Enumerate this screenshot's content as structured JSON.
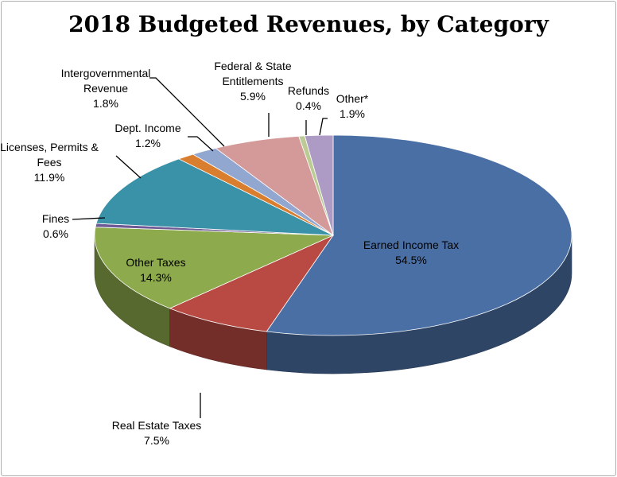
{
  "chart_data": {
    "type": "pie",
    "title": "2018 Budgeted Revenues, by Category",
    "slices": [
      {
        "label": [
          "Earned Income Tax"
        ],
        "value_text": "54.5%",
        "value": 54.5,
        "color": "#4A6FA5"
      },
      {
        "label": [
          "Real Estate Taxes"
        ],
        "value_text": "7.5%",
        "value": 7.5,
        "color": "#B94A43"
      },
      {
        "label": [
          "Other Taxes"
        ],
        "value_text": "14.3%",
        "value": 14.3,
        "color": "#8DAA4C"
      },
      {
        "label": [
          "Fines"
        ],
        "value_text": "0.6%",
        "value": 0.6,
        "color": "#6E5A95"
      },
      {
        "label": [
          "Licenses, Permits &",
          "Fees"
        ],
        "value_text": "11.9%",
        "value": 11.9,
        "color": "#3A92A8"
      },
      {
        "label": [
          "Dept. Income"
        ],
        "value_text": "1.2%",
        "value": 1.2,
        "color": "#D97E2E"
      },
      {
        "label": [
          "Intergovernmental",
          "Revenue"
        ],
        "value_text": "1.8%",
        "value": 1.8,
        "color": "#91A7D0"
      },
      {
        "label": [
          "Federal & State",
          "Entitlements"
        ],
        "value_text": "5.9%",
        "value": 5.9,
        "color": "#D49A9A"
      },
      {
        "label": [
          "Refunds"
        ],
        "value_text": "0.4%",
        "value": 0.4,
        "color": "#BCCB94"
      },
      {
        "label": [
          "Other*"
        ],
        "value_text": "1.9%",
        "value": 1.9,
        "color": "#AD9BC6"
      }
    ]
  }
}
